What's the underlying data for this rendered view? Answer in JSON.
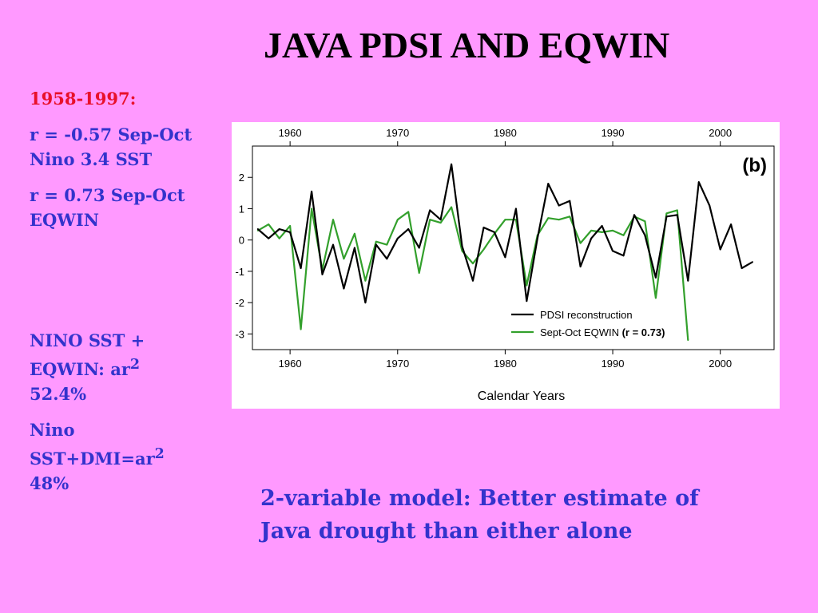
{
  "slide": {
    "title": "JAVA PDSI AND  EQWIN",
    "years": "1958-1997:",
    "stat1": "r = -0.57 Sep-Oct Nino 3.4 SST",
    "stat2": "r = 0.73 Sep-Oct EQWIN",
    "stat3_main": "NINO SST + EQWIN: ar",
    "stat3_sup": "2",
    "stat3_tail": "52.4%",
    "stat4_main": "Nino SST+DMI=ar",
    "stat4_sup": "2",
    "stat4_tail": "48%",
    "conclusion": "2-variable model: Better estimate of Java drought than either alone"
  },
  "chart_data": {
    "type": "line",
    "panel_label": "(b)",
    "xlabel": "Calendar Years",
    "ylabel": "",
    "xlim": [
      1956.5,
      2005.0
    ],
    "ylim": [
      -3.5,
      3.0
    ],
    "xticks": [
      1960,
      1970,
      1980,
      1990,
      2000
    ],
    "yticks": [
      2,
      1,
      0,
      -1,
      -2,
      -3
    ],
    "legend_position": "bottom-right",
    "series": [
      {
        "name": "PDSI reconstruction",
        "color": "#000000",
        "x": [
          1957,
          1958,
          1959,
          1960,
          1961,
          1962,
          1963,
          1964,
          1965,
          1966,
          1967,
          1968,
          1969,
          1970,
          1971,
          1972,
          1973,
          1974,
          1975,
          1976,
          1977,
          1978,
          1979,
          1980,
          1981,
          1982,
          1983,
          1984,
          1985,
          1986,
          1987,
          1988,
          1989,
          1990,
          1991,
          1992,
          1993,
          1994,
          1995,
          1996,
          1997,
          1998,
          1999,
          2000,
          2001,
          2002,
          2003
        ],
        "values": [
          0.35,
          0.05,
          0.35,
          0.25,
          -0.9,
          1.55,
          -1.1,
          -0.15,
          -1.55,
          -0.25,
          -2.0,
          -0.15,
          -0.6,
          0.05,
          0.35,
          -0.25,
          0.95,
          0.65,
          2.42,
          -0.2,
          -1.3,
          0.4,
          0.25,
          -0.55,
          1.0,
          -1.95,
          0.05,
          1.8,
          1.1,
          1.25,
          -0.85,
          0.05,
          0.45,
          -0.35,
          -0.5,
          0.8,
          0.15,
          -1.2,
          0.75,
          0.8,
          -1.3,
          1.85,
          1.1,
          -0.3,
          0.5,
          -0.9,
          -0.7
        ]
      },
      {
        "name": "Sept-Oct EQWIN",
        "color": "#33a02c",
        "x": [
          1957,
          1958,
          1959,
          1960,
          1961,
          1962,
          1963,
          1964,
          1965,
          1966,
          1967,
          1968,
          1969,
          1970,
          1971,
          1972,
          1973,
          1974,
          1975,
          1976,
          1977,
          1978,
          1979,
          1980,
          1981,
          1982,
          1983,
          1984,
          1985,
          1986,
          1987,
          1988,
          1989,
          1990,
          1991,
          1992,
          1993,
          1994,
          1995,
          1996,
          1997
        ],
        "values": [
          0.3,
          0.5,
          0.05,
          0.45,
          -2.85,
          1.0,
          -0.95,
          0.65,
          -0.6,
          0.2,
          -1.3,
          -0.05,
          -0.15,
          0.65,
          0.9,
          -1.05,
          0.65,
          0.55,
          1.05,
          -0.35,
          -0.75,
          -0.3,
          0.2,
          0.65,
          0.65,
          -1.45,
          0.15,
          0.7,
          0.65,
          0.75,
          -0.1,
          0.3,
          0.25,
          0.3,
          0.15,
          0.75,
          0.6,
          -1.85,
          0.85,
          0.95,
          -3.2
        ]
      }
    ],
    "legend_note": "(r = 0.73)"
  }
}
